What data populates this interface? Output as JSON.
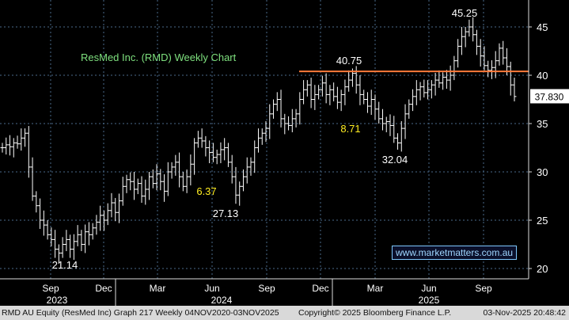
{
  "chart_data": {
    "type": "candlestick",
    "title": "ResMed Inc. (RMD) Weekly Chart",
    "y_ticks": [
      20,
      25,
      30,
      35,
      40,
      45
    ],
    "ylim": [
      19,
      47
    ],
    "x_month_labels": [
      "Sep",
      "Dec",
      "Mar",
      "Jun",
      "Sep",
      "Dec",
      "Mar",
      "Jun",
      "Sep"
    ],
    "x_year_labels": [
      "2023",
      "2024",
      "2025"
    ],
    "resistance_level": 40.4,
    "last_price": "37.830",
    "annotations": [
      {
        "text": "21.14",
        "color": "white"
      },
      {
        "text": "6.37",
        "color": "yellow"
      },
      {
        "text": "27.13",
        "color": "white"
      },
      {
        "text": "40.75",
        "color": "white"
      },
      {
        "text": "8.71",
        "color": "yellow"
      },
      {
        "text": "32.04",
        "color": "white"
      },
      {
        "text": "45.25",
        "color": "white"
      }
    ],
    "weekly_closes": [
      32.5,
      32.8,
      32.6,
      33.0,
      32.9,
      33.5,
      34.0,
      30.5,
      27.5,
      26.5,
      25.0,
      24.5,
      23.5,
      23.0,
      22.0,
      21.6,
      22.5,
      23.0,
      22.0,
      22.8,
      23.5,
      22.5,
      23.8,
      23.5,
      24.2,
      24.8,
      25.5,
      25.0,
      26.0,
      26.8,
      25.8,
      27.0,
      28.5,
      29.2,
      29.0,
      28.2,
      28.8,
      27.5,
      28.2,
      29.5,
      28.8,
      29.8,
      29.0,
      28.0,
      30.0,
      30.5,
      31.0,
      29.5,
      28.5,
      29.5,
      30.8,
      33.0,
      33.5,
      33.2,
      32.5,
      32.0,
      31.5,
      31.8,
      32.3,
      32.5,
      31.0,
      29.5,
      27.6,
      28.5,
      29.5,
      30.5,
      31.0,
      32.5,
      33.5,
      34.0,
      34.5,
      36.0,
      37.0,
      37.5,
      35.5,
      35.0,
      34.8,
      35.5,
      36.0,
      37.5,
      38.5,
      39.0,
      37.5,
      38.0,
      38.5,
      39.2,
      38.0,
      38.5,
      37.8,
      37.2,
      38.0,
      38.8,
      39.5,
      40.2,
      39.0,
      38.0,
      37.5,
      36.8,
      37.5,
      36.5,
      35.5,
      35.0,
      35.2,
      34.8,
      33.5,
      33.0,
      34.5,
      36.0,
      37.0,
      37.8,
      38.5,
      38.8,
      38.2,
      38.5,
      39.0,
      39.5,
      39.2,
      39.8,
      39.5,
      40.0,
      41.5,
      43.0,
      44.0,
      44.5,
      45.0,
      44.2,
      43.0,
      42.0,
      41.0,
      40.5,
      40.8,
      41.5,
      42.8,
      41.8,
      40.9,
      39.0,
      37.8
    ]
  },
  "footer": {
    "left": "RMD AU Equity (ResMed Inc) Graph 217 Weekly 04NOV2020-03NOV2025",
    "middle": "Copyright© 2025 Bloomberg Finance L.P.",
    "right": "03-Nov-2025 20:48:42"
  },
  "watermark": "www.marketmatters.com.au",
  "colors": {
    "background": "#000000",
    "grid": "#4a6a8a",
    "bars": "#ffffff",
    "resistance_line": "#ff7a3a",
    "highlight_text": "#ffee22",
    "title_text": "#7ee07e"
  }
}
